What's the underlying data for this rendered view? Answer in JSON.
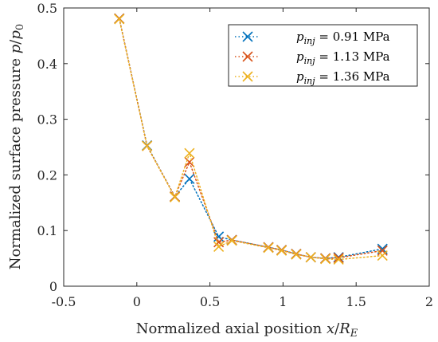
{
  "chart_data": {
    "type": "line",
    "xlabel": "Normalized axial position x/R_E",
    "ylabel": "Normalized surface pressure p/p_0",
    "xlim": [
      -0.5,
      2
    ],
    "ylim": [
      0,
      0.5
    ],
    "xticks": [
      -0.5,
      0,
      0.5,
      1,
      1.5,
      2
    ],
    "xtick_labels": [
      "-0.5",
      "0",
      "0.5",
      "1",
      "1.5",
      "2"
    ],
    "yticks": [
      0,
      0.1,
      0.2,
      0.3,
      0.4,
      0.5
    ],
    "ytick_labels": [
      "0",
      "0.1",
      "0.2",
      "0.3",
      "0.4",
      "0.5"
    ],
    "grid": false,
    "legend_position": "top-right",
    "series": [
      {
        "name": "p_inj = 0.91 MPa",
        "color": "#0072bd",
        "marker": "x",
        "line_style": "dotted",
        "x": [
          -0.12,
          0.07,
          0.26,
          0.36,
          0.56,
          0.65,
          0.9,
          0.99,
          1.09,
          1.19,
          1.29,
          1.38,
          1.68
        ],
        "y": [
          0.481,
          0.253,
          0.161,
          0.193,
          0.089,
          0.083,
          0.07,
          0.065,
          0.058,
          0.052,
          0.05,
          0.052,
          0.067
        ]
      },
      {
        "name": "p_inj = 1.13 MPa",
        "color": "#d95319",
        "marker": "x",
        "line_style": "dotted",
        "x": [
          -0.12,
          0.07,
          0.26,
          0.36,
          0.56,
          0.65,
          0.9,
          0.99,
          1.09,
          1.19,
          1.29,
          1.38,
          1.68
        ],
        "y": [
          0.481,
          0.252,
          0.161,
          0.223,
          0.079,
          0.083,
          0.07,
          0.065,
          0.058,
          0.052,
          0.05,
          0.051,
          0.064
        ]
      },
      {
        "name": "p_inj = 1.36 MPa",
        "color": "#edb120",
        "marker": "x",
        "line_style": "dotted",
        "x": [
          -0.12,
          0.07,
          0.26,
          0.36,
          0.56,
          0.65,
          0.9,
          0.99,
          1.09,
          1.19,
          1.29,
          1.38,
          1.68
        ],
        "y": [
          0.48,
          0.252,
          0.16,
          0.239,
          0.071,
          0.082,
          0.069,
          0.064,
          0.057,
          0.052,
          0.049,
          0.048,
          0.055
        ]
      }
    ]
  }
}
